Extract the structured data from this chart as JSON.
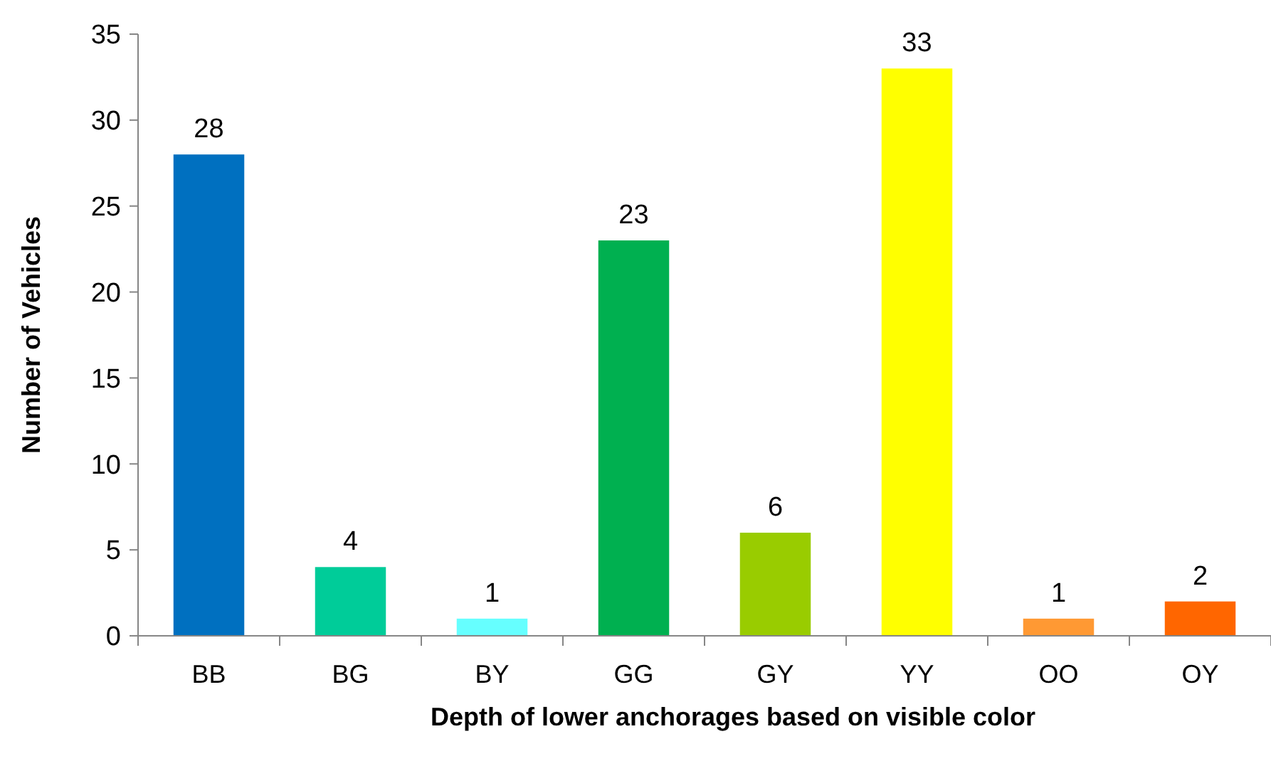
{
  "chart_data": {
    "type": "bar",
    "xlabel": "Depth of lower anchorages based on visible color",
    "ylabel": "Number of Vehicles",
    "categories": [
      "BB",
      "BG",
      "BY",
      "GG",
      "GY",
      "YY",
      "OO",
      "OY"
    ],
    "values": [
      28,
      4,
      1,
      23,
      6,
      33,
      1,
      2
    ],
    "colors": [
      "#0070c0",
      "#00cc99",
      "#66ffff",
      "#00b050",
      "#99cc00",
      "#ffff00",
      "#ff9933",
      "#ff6600"
    ],
    "ylim": [
      0,
      35
    ],
    "yticks": [
      0,
      5,
      10,
      15,
      20,
      25,
      30,
      35
    ],
    "grid": false,
    "data_labels": true
  }
}
